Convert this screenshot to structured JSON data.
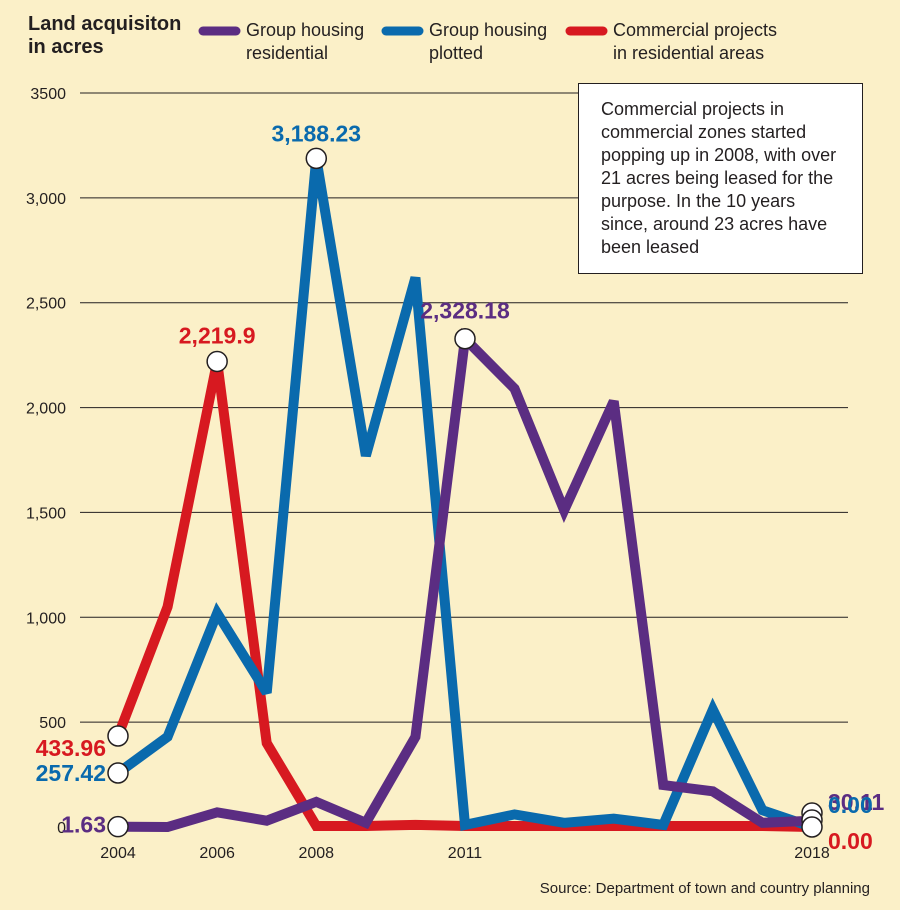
{
  "chart_data": {
    "type": "line",
    "title": "Land acquisiton in acres",
    "title_lines": [
      "Land acquisiton",
      "in acres"
    ],
    "x": [
      2004,
      2005,
      2006,
      2007,
      2008,
      2009,
      2010,
      2011,
      2012,
      2013,
      2014,
      2015,
      2016,
      2017,
      2018
    ],
    "x_tick_labels": [
      "2004",
      "2006",
      "2008",
      "2011",
      "2018"
    ],
    "ylim": [
      0,
      3500
    ],
    "y_ticks": [
      0,
      500,
      1000,
      1500,
      2000,
      2500,
      3000,
      3500
    ],
    "y_tick_labels": [
      "0",
      "500",
      "1,000",
      "1,500",
      "2,000",
      "2,500",
      "3,000",
      "3500"
    ],
    "grid": true,
    "legend_position": "top",
    "series": [
      {
        "name": "Group housing residential",
        "legend_lines": [
          "Group housing",
          "residential"
        ],
        "color": "#5b2d82",
        "values": [
          1.63,
          0,
          70,
          30,
          120,
          20,
          430,
          2328.18,
          2090,
          1510,
          2030,
          200,
          170,
          20,
          30.11
        ]
      },
      {
        "name": "Group housing plotted",
        "legend_lines": [
          "Group housing",
          "plotted"
        ],
        "color": "#0a6aad",
        "values": [
          257.42,
          430,
          1020,
          640,
          3188.23,
          1770,
          2620,
          10,
          60,
          20,
          40,
          10,
          560,
          80,
          0
        ]
      },
      {
        "name": "Commercial projects in residential areas",
        "legend_lines": [
          "Commercial projects",
          "in residential areas"
        ],
        "color": "#d71920",
        "values": [
          433.96,
          1050,
          2219.9,
          400,
          5,
          5,
          10,
          5,
          5,
          5,
          5,
          5,
          5,
          5,
          0
        ]
      }
    ],
    "annotations": [
      {
        "text": "1.63",
        "color": "#5b2d82",
        "series": 0,
        "index": 0
      },
      {
        "text": "257.42",
        "color": "#0a6aad",
        "series": 1,
        "index": 0
      },
      {
        "text": "433.96",
        "color": "#d71920",
        "series": 2,
        "index": 0
      },
      {
        "text": "2,219.9",
        "color": "#d71920",
        "series": 2,
        "index": 2
      },
      {
        "text": "3,188.23",
        "color": "#0a6aad",
        "series": 1,
        "index": 4
      },
      {
        "text": "2,328.18",
        "color": "#5b2d82",
        "series": 0,
        "index": 7
      },
      {
        "text": "30.11",
        "color": "#5b2d82",
        "series": 0,
        "index": 14
      },
      {
        "text": "0.00",
        "color": "#0a6aad",
        "series": 1,
        "index": 14
      },
      {
        "text": "0.00",
        "color": "#d71920",
        "series": 2,
        "index": 14
      }
    ],
    "note": "Commercial projects in commercial zones started popping up in 2008, with over 21 acres being leased for the purpose. In the 10 years since, around 23 acres have been leased",
    "source": "Source: Department of town and country planning"
  },
  "colors": {
    "background": "#fbf0c8",
    "grid": "#231f20",
    "text": "#231f20"
  }
}
